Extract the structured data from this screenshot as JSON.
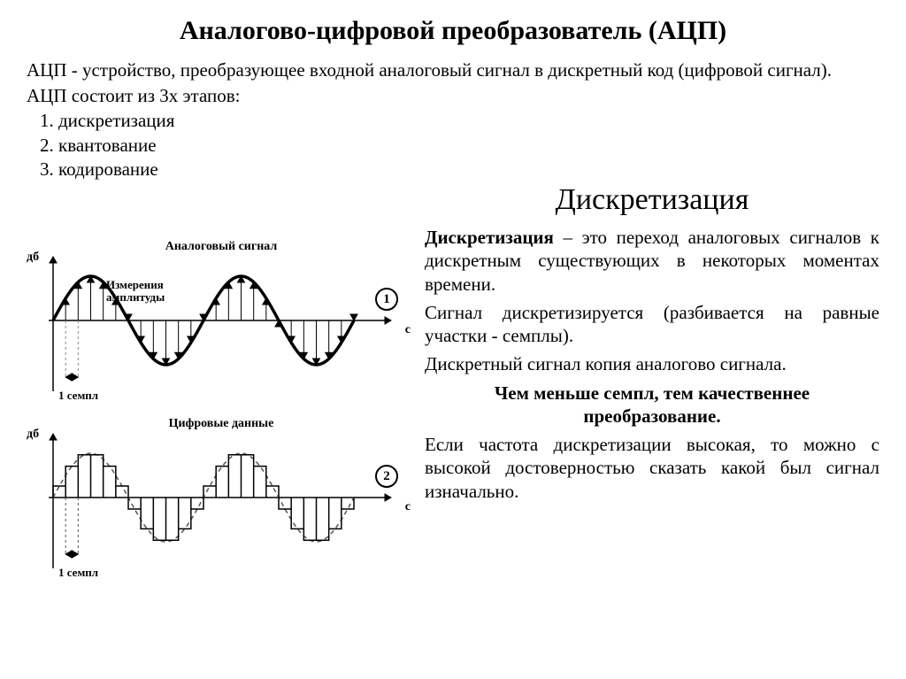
{
  "title": "Аналогово-цифровой преобразователь (АЦП)",
  "intro": "АЦП - устройство, преобразующее входной аналоговый сигнал в дискретный код (цифровой сигнал).",
  "sub": "АЦП состоит из 3х этапов:",
  "steps": [
    "дискретизация",
    "квантование",
    "кодирование"
  ],
  "section_heading": "Дискретизация",
  "definition_term": "Дискретизация",
  "definition_rest": " – это переход аналоговых сигналов к дискретным существующих в некоторых моментах времени.",
  "para2": "Сигнал дискретизируется (разбивается на равные участки - семплы).",
  "para3": "Дискретный сигнал копия аналогово сигнала.",
  "bold_center": "Чем меньше семпл, тем качественнее преобразование.",
  "para4": "Если частота дискретизации высокая, то можно с высокой достоверностью сказать какой был сигнал изначально.",
  "diagram1": {
    "type": "line",
    "title": "Аналоговый сигнал",
    "y_label": "дб",
    "x_label": "с",
    "amp_label": "Измерения\nамплитуды",
    "sample_label": "1 семпл",
    "circle_num": "1",
    "stroke": "#000000",
    "axis_color": "#000000",
    "arrow_color": "#000000",
    "dash_color": "#888888",
    "wave_amplitude": 50,
    "periods": 2,
    "samples_per_period": 12
  },
  "diagram2": {
    "type": "bar-step",
    "title": "Цифровые данные",
    "y_label": "дб",
    "x_label": "с",
    "sample_label": "1 семпл",
    "circle_num": "2",
    "stroke": "#000000",
    "dash_color": "#555555",
    "wave_amplitude": 50,
    "periods": 2,
    "samples_per_period": 12
  },
  "colors": {
    "bg": "#ffffff",
    "text": "#000000"
  }
}
